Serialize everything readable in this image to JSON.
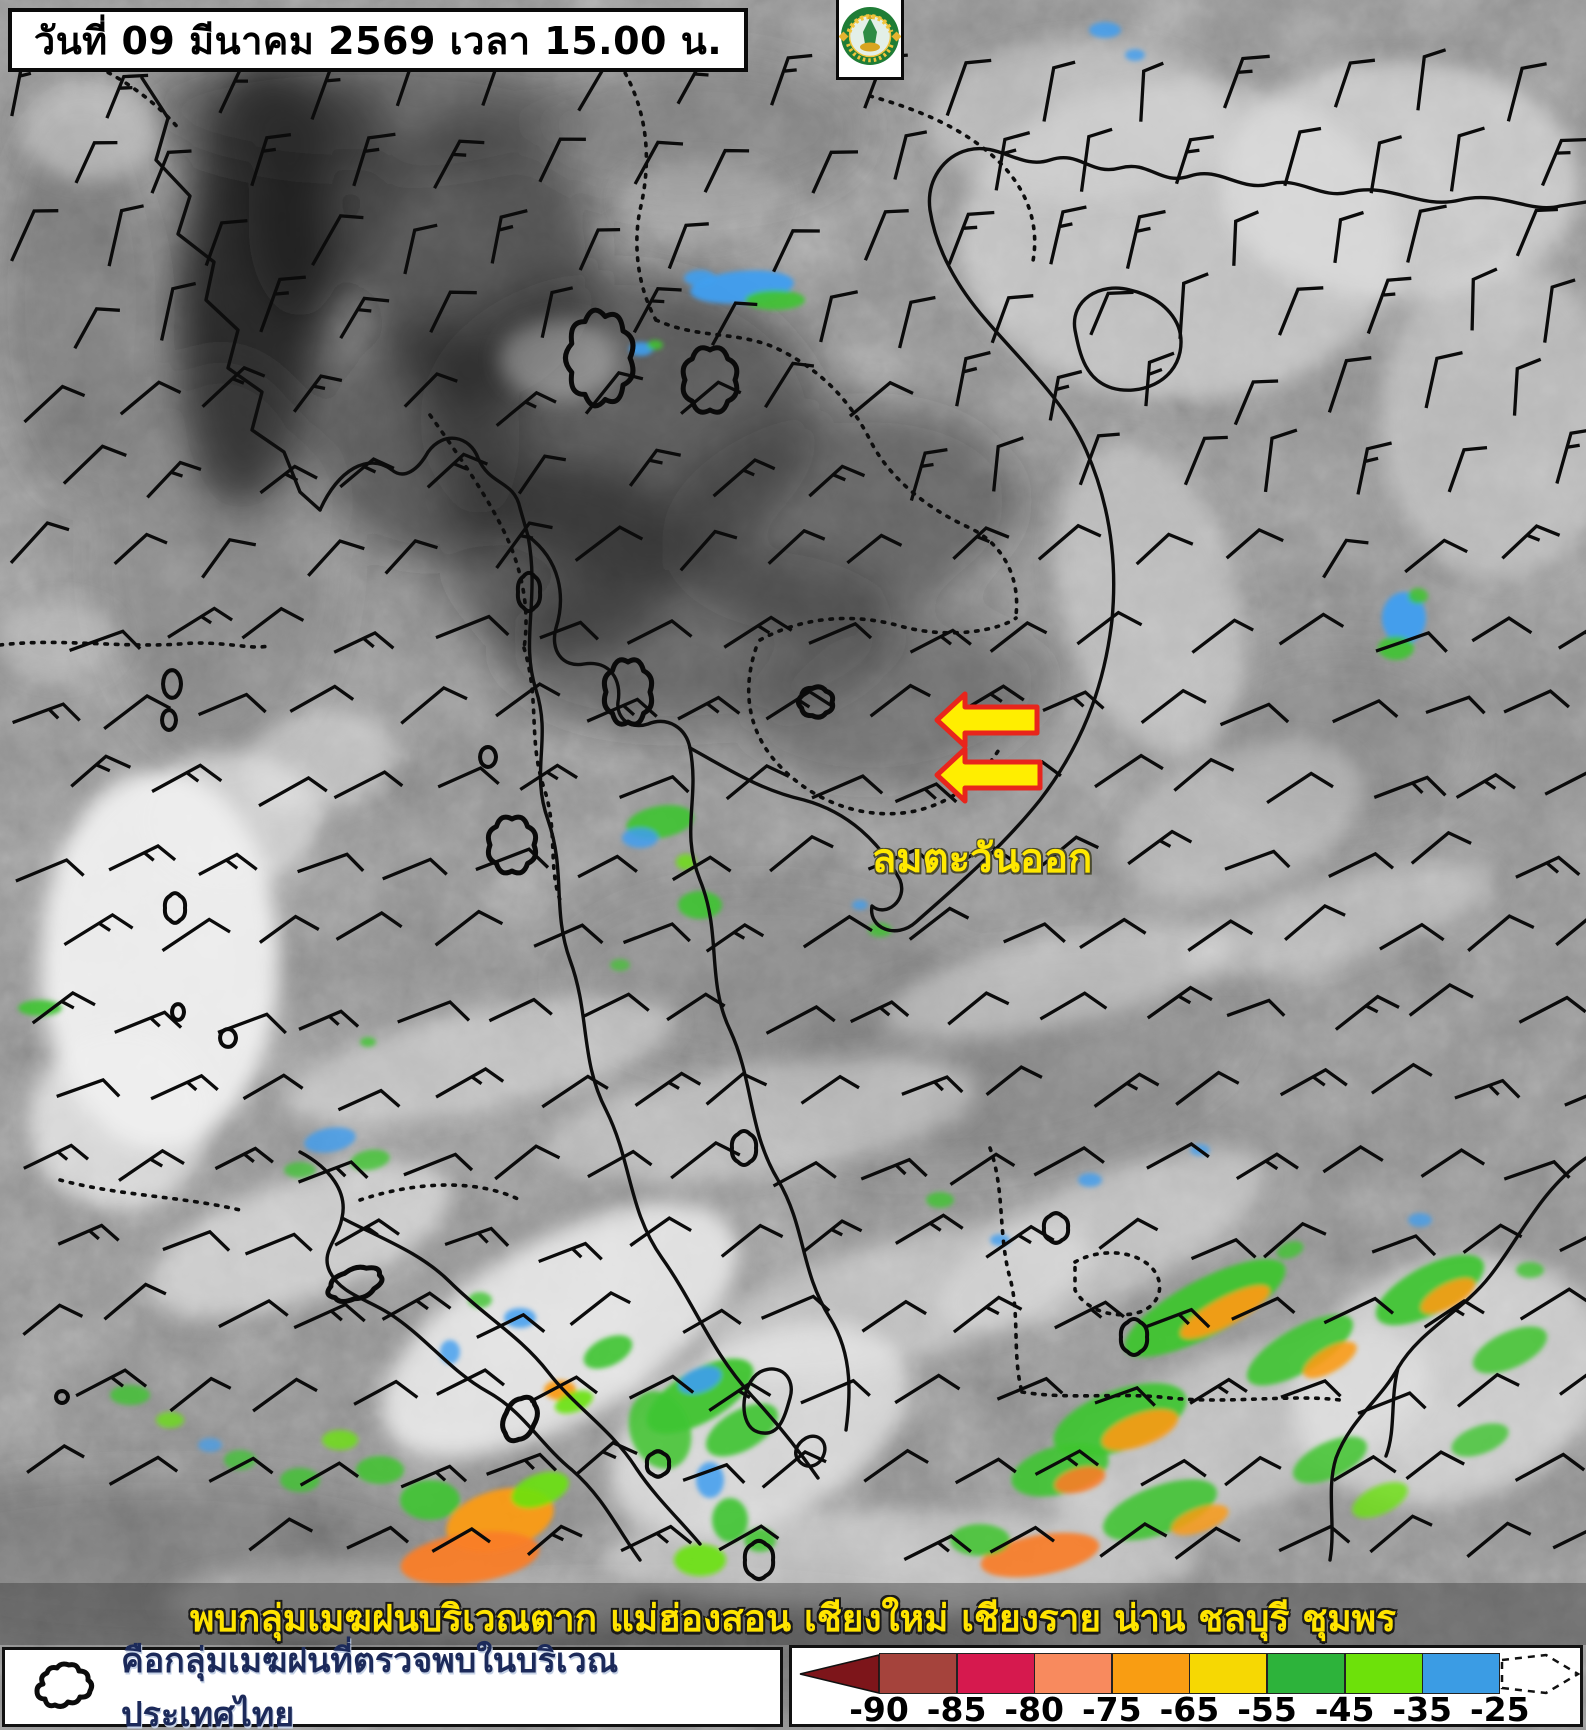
{
  "header": {
    "title": "วันที่ 09 มีนาคม 2569 เวลา 15.00 น."
  },
  "annotations": {
    "wind_direction_label": "ลมตะวันออก"
  },
  "caption": {
    "text": "พบกลุ่มเมฆฝนบริเวณตาก แม่ฮ่องสอน เชียงใหม่ เชียงราย น่าน ชลบุรี ชุมพร"
  },
  "legend": {
    "cloud_note": "คือกลุ่มเมฆฝนที่ตรวจพบในบริเวณประเทศไทย"
  },
  "scale": {
    "ticks": [
      "-90",
      "-85",
      "-80",
      "-75",
      "-65",
      "-55",
      "-45",
      "-35",
      "-25"
    ],
    "colors": [
      "#a5433c",
      "#d6194e",
      "#f88a5e",
      "#f99d12",
      "#f6d803",
      "#2db33b",
      "#6de10a",
      "#3b9ce4"
    ],
    "left_arrow_color": "#7d151a"
  },
  "colors": {
    "annotation_yellow": "#ffe800",
    "arrow_fill": "#ffee00",
    "arrow_outline": "#e8251c",
    "legend_text_navy": "#1c2a5a"
  }
}
